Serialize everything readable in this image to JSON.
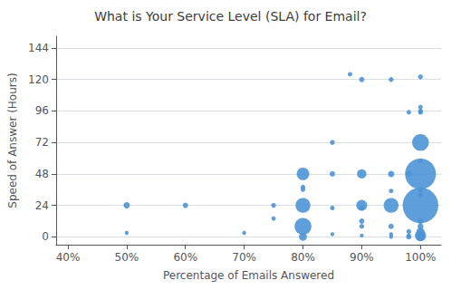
{
  "chart_data": {
    "type": "scatter",
    "title": "What is Your Service Level (SLA) for Email?",
    "xlabel": "Percentage of Emails Answered",
    "ylabel": "Speed of Answer (Hours)",
    "color": "#4d94d6",
    "xlim": [
      0.38,
      1.035
    ],
    "ylim": [
      -6,
      153
    ],
    "xticks": [
      {
        "value": 0.4,
        "label": "40%"
      },
      {
        "value": 0.5,
        "label": "50%"
      },
      {
        "value": 0.6,
        "label": "60%"
      },
      {
        "value": 0.7,
        "label": "70%"
      },
      {
        "value": 0.8,
        "label": "80%"
      },
      {
        "value": 0.9,
        "label": "90%"
      },
      {
        "value": 1.0,
        "label": "100%"
      }
    ],
    "yticks": [
      0,
      24,
      48,
      72,
      96,
      120,
      144
    ],
    "grid": "y",
    "x": [
      0.5,
      0.5,
      0.6,
      0.7,
      0.75,
      0.75,
      0.8,
      0.8,
      0.8,
      0.8,
      0.8,
      0.8,
      0.85,
      0.85,
      0.85,
      0.85,
      0.88,
      0.9,
      0.9,
      0.9,
      0.9,
      0.9,
      0.9,
      0.9,
      0.95,
      0.95,
      0.95,
      0.95,
      0.95,
      0.95,
      0.95,
      0.98,
      0.98,
      0.98,
      0.98,
      0.98,
      1.0,
      1.0,
      1.0,
      1.0,
      1.0,
      1.0,
      1.0,
      1.0,
      1.0,
      1.0,
      1.0,
      1.0,
      1.0,
      1.0,
      1.0,
      1.0,
      1.0
    ],
    "values": [
      24,
      3,
      24,
      3,
      14,
      24,
      48,
      38,
      36,
      24,
      8,
      0,
      72,
      48,
      22,
      2,
      124,
      120,
      48,
      24,
      22,
      12,
      8,
      1,
      120,
      48,
      35,
      24,
      8,
      2,
      0,
      95,
      48,
      4,
      1,
      0,
      122,
      96,
      95,
      72,
      58,
      48,
      36,
      32,
      24,
      12,
      8,
      4,
      2,
      1,
      0,
      96,
      99
    ],
    "sizes": [
      25,
      10,
      18,
      10,
      13,
      15,
      100,
      13,
      13,
      140,
      180,
      40,
      15,
      18,
      13,
      10,
      13,
      18,
      55,
      75,
      18,
      18,
      15,
      10,
      15,
      25,
      13,
      140,
      18,
      10,
      10,
      13,
      22,
      15,
      10,
      18,
      15,
      13,
      15,
      175,
      15,
      600,
      15,
      13,
      800,
      22,
      22,
      40,
      18,
      80,
      50,
      10,
      13
    ]
  }
}
